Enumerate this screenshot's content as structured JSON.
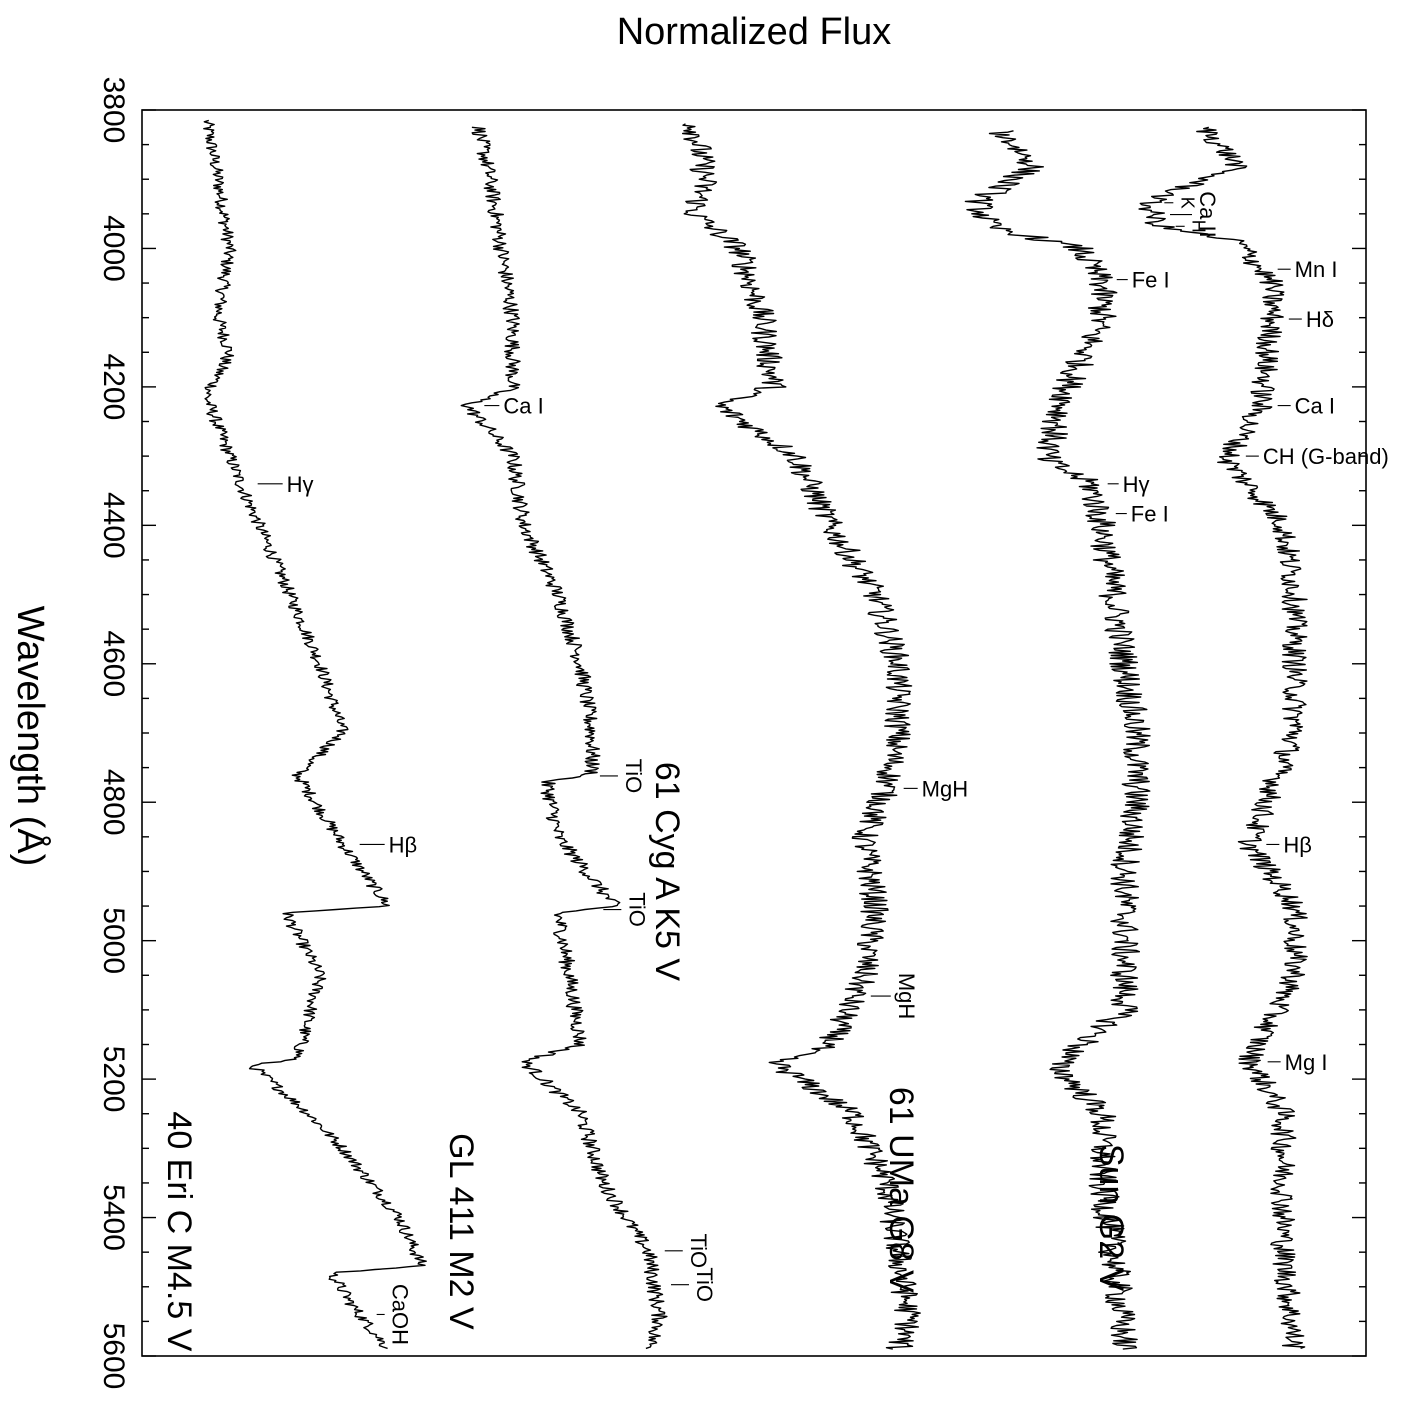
{
  "chart_data": {
    "type": "line",
    "title": "Normalized Flux",
    "ylabel": "Wavelength (Å)",
    "ylim": [
      3800,
      5600
    ],
    "yticks": [
      3800,
      4000,
      4200,
      4400,
      4600,
      4800,
      5000,
      5200,
      5400,
      5600
    ],
    "ytick_labels": [
      "3800",
      "4000",
      "4200",
      "4400",
      "4600",
      "4800",
      "5000",
      "5200",
      "5400",
      "5600"
    ],
    "minor_tick_step": 50,
    "orientation": "rotated",
    "grid": false,
    "series": [
      {
        "name": "40 Eri C  M4.5 V",
        "label_wavelength": 5420,
        "anchors": [
          [
            3815,
            0.05
          ],
          [
            3900,
            0.06
          ],
          [
            4000,
            0.07
          ],
          [
            4100,
            0.06
          ],
          [
            4150,
            0.07
          ],
          [
            4215,
            0.05
          ],
          [
            4340,
            0.08
          ],
          [
            4450,
            0.11
          ],
          [
            4600,
            0.15
          ],
          [
            4700,
            0.17
          ],
          [
            4760,
            0.13
          ],
          [
            4861,
            0.17
          ],
          [
            4950,
            0.21
          ],
          [
            4960,
            0.12
          ],
          [
            5050,
            0.15
          ],
          [
            5170,
            0.13
          ],
          [
            5180,
            0.09
          ],
          [
            5250,
            0.14
          ],
          [
            5300,
            0.17
          ],
          [
            5400,
            0.22
          ],
          [
            5470,
            0.24
          ],
          [
            5480,
            0.16
          ],
          [
            5530,
            0.18
          ],
          [
            5590,
            0.21
          ]
        ],
        "features": [
          {
            "label": "Hγ",
            "wavelength": 4340
          },
          {
            "label": "Hβ",
            "wavelength": 4861
          },
          {
            "label": "CaOH",
            "wavelength": 5540
          }
        ]
      },
      {
        "name": "GL 411  M2 V",
        "label_wavelength": 5420,
        "anchors": [
          [
            3825,
            0.29
          ],
          [
            3900,
            0.3
          ],
          [
            4000,
            0.31
          ],
          [
            4100,
            0.32
          ],
          [
            4200,
            0.32
          ],
          [
            4227,
            0.28
          ],
          [
            4300,
            0.32
          ],
          [
            4400,
            0.33
          ],
          [
            4500,
            0.36
          ],
          [
            4600,
            0.38
          ],
          [
            4700,
            0.39
          ],
          [
            4760,
            0.39
          ],
          [
            4770,
            0.35
          ],
          [
            4850,
            0.36
          ],
          [
            4950,
            0.41
          ],
          [
            4960,
            0.36
          ],
          [
            5050,
            0.37
          ],
          [
            5150,
            0.38
          ],
          [
            5175,
            0.33
          ],
          [
            5250,
            0.38
          ],
          [
            5350,
            0.4
          ],
          [
            5450,
            0.44
          ],
          [
            5550,
            0.45
          ],
          [
            5590,
            0.44
          ]
        ],
        "features": [
          {
            "label": "Ca I",
            "wavelength": 4227
          },
          {
            "label": "TiO",
            "wavelength": 4762
          },
          {
            "label": "TiO",
            "wavelength": 4955
          },
          {
            "label": "TiO",
            "wavelength": 5448
          },
          {
            "label": "TiO",
            "wavelength": 5497
          }
        ]
      },
      {
        "name": "61 Cyg A  K5 V",
        "label_wavelength": 4900,
        "anchors": [
          [
            3820,
            0.48
          ],
          [
            3900,
            0.49
          ],
          [
            3950,
            0.48
          ],
          [
            4000,
            0.52
          ],
          [
            4100,
            0.54
          ],
          [
            4200,
            0.55
          ],
          [
            4225,
            0.5
          ],
          [
            4300,
            0.57
          ],
          [
            4400,
            0.6
          ],
          [
            4500,
            0.64
          ],
          [
            4600,
            0.66
          ],
          [
            4700,
            0.66
          ],
          [
            4780,
            0.65
          ],
          [
            4850,
            0.63
          ],
          [
            4950,
            0.64
          ],
          [
            5050,
            0.63
          ],
          [
            5150,
            0.6
          ],
          [
            5175,
            0.55
          ],
          [
            5250,
            0.62
          ],
          [
            5350,
            0.65
          ],
          [
            5450,
            0.66
          ],
          [
            5550,
            0.67
          ],
          [
            5590,
            0.66
          ]
        ],
        "features": [
          {
            "label": "MgH",
            "wavelength": 4780
          },
          {
            "label": "MgH",
            "wavelength": 5080
          }
        ]
      },
      {
        "name": "61 UMa  G8 V",
        "label_wavelength": 5360,
        "anchors": [
          [
            3830,
            0.75
          ],
          [
            3880,
            0.78
          ],
          [
            3934,
            0.73
          ],
          [
            3968,
            0.74
          ],
          [
            4000,
            0.82
          ],
          [
            4050,
            0.84
          ],
          [
            4100,
            0.84
          ],
          [
            4200,
            0.81
          ],
          [
            4305,
            0.79
          ],
          [
            4340,
            0.83
          ],
          [
            4400,
            0.84
          ],
          [
            4500,
            0.85
          ],
          [
            4600,
            0.86
          ],
          [
            4700,
            0.87
          ],
          [
            4800,
            0.87
          ],
          [
            4900,
            0.86
          ],
          [
            5000,
            0.86
          ],
          [
            5100,
            0.86
          ],
          [
            5180,
            0.8
          ],
          [
            5250,
            0.84
          ],
          [
            5350,
            0.84
          ],
          [
            5450,
            0.85
          ],
          [
            5590,
            0.86
          ]
        ],
        "features": [
          {
            "label": "Fe I",
            "wavelength": 4045
          },
          {
            "label": "Hγ",
            "wavelength": 4340
          },
          {
            "label": "Fe I",
            "wavelength": 4383
          }
        ]
      },
      {
        "name": "Sun  G2 V",
        "label_wavelength": 5400,
        "anchors": [
          [
            3825,
            0.93
          ],
          [
            3880,
            0.96
          ],
          [
            3934,
            0.88
          ],
          [
            3968,
            0.89
          ],
          [
            3990,
            0.96
          ],
          [
            4050,
            0.99
          ],
          [
            4100,
            0.99
          ],
          [
            4227,
            0.98
          ],
          [
            4305,
            0.95
          ],
          [
            4400,
            1.0
          ],
          [
            4500,
            1.01
          ],
          [
            4600,
            1.01
          ],
          [
            4700,
            1.01
          ],
          [
            4861,
            0.97
          ],
          [
            4950,
            1.01
          ],
          [
            5050,
            1.01
          ],
          [
            5172,
            0.97
          ],
          [
            5250,
            1.0
          ],
          [
            5350,
            1.0
          ],
          [
            5450,
            1.0
          ],
          [
            5590,
            1.01
          ]
        ],
        "features": [
          {
            "label": "K",
            "wavelength": 3934
          },
          {
            "label": "H",
            "wavelength": 3968
          },
          {
            "label": "Ca II",
            "wavelength": 3951
          },
          {
            "label": "Mn I",
            "wavelength": 4030
          },
          {
            "label": "Hδ",
            "wavelength": 4102
          },
          {
            "label": "Ca I",
            "wavelength": 4227
          },
          {
            "label": "CH (G-band)",
            "wavelength": 4300
          },
          {
            "label": "Hβ",
            "wavelength": 4861
          },
          {
            "label": "Mg I",
            "wavelength": 5175
          }
        ]
      }
    ]
  }
}
